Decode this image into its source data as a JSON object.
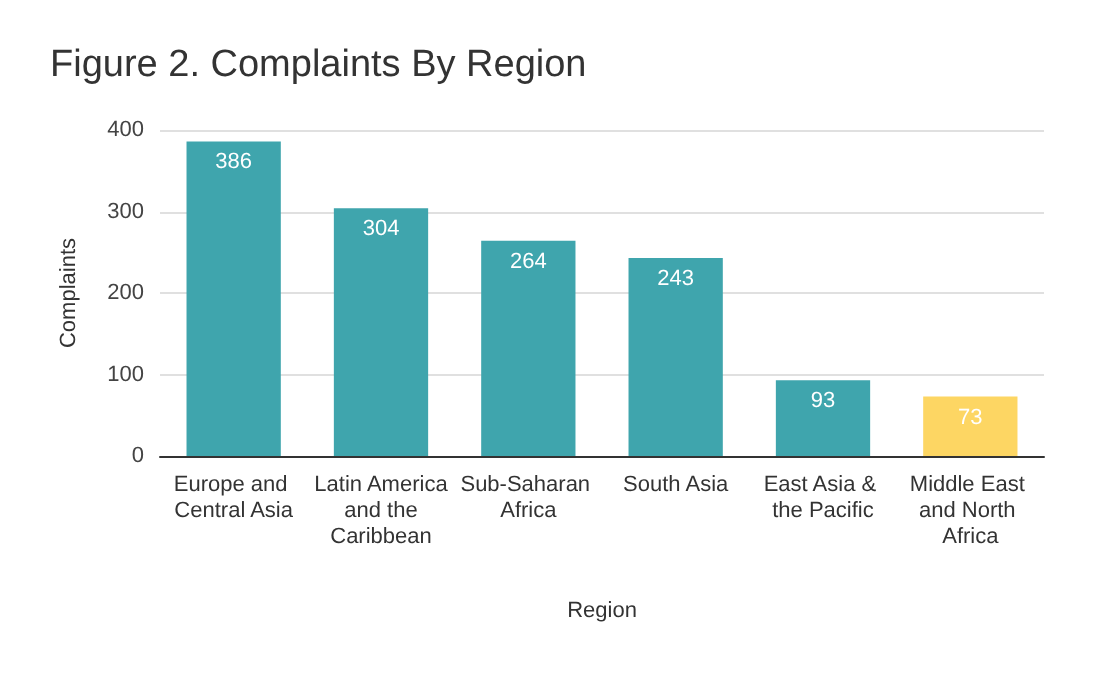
{
  "chart_data": {
    "type": "bar",
    "title": "Figure 2. Complaints By Region",
    "xlabel": "Region",
    "ylabel": "Complaints",
    "categories": [
      "Europe and Central Asia",
      "Latin America and the Caribbean",
      "Sub-Saharan Africa",
      "South Asia",
      "East Asia & the Pacific",
      "Middle East and North Africa"
    ],
    "values": [
      386,
      304,
      264,
      243,
      93,
      73
    ],
    "colors": [
      "#3fa5ad",
      "#3fa5ad",
      "#3fa5ad",
      "#3fa5ad",
      "#3fa5ad",
      "#fdd663"
    ],
    "ylim": [
      0,
      400
    ],
    "yticks": [
      0,
      100,
      200,
      300,
      400
    ],
    "grid": "y",
    "data_labels": true
  }
}
